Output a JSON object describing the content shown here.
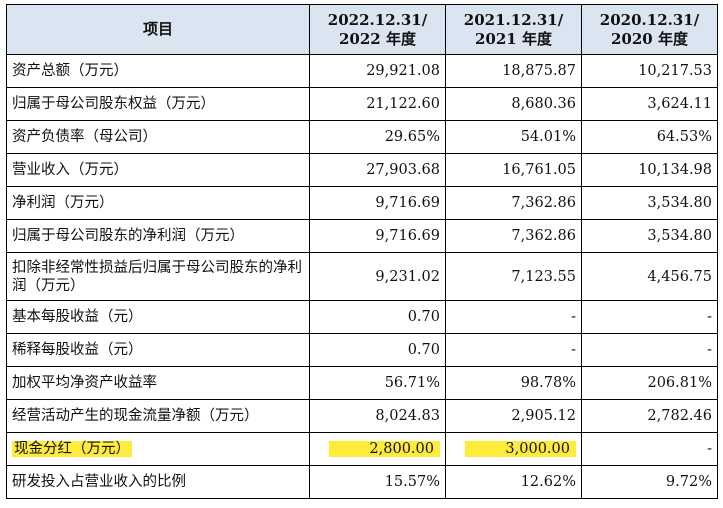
{
  "table": {
    "headers": [
      {
        "line1": "项目",
        "line2": ""
      },
      {
        "line1": "2022.12.31/",
        "line2": "2022 年度"
      },
      {
        "line1": "2021.12.31/",
        "line2": "2021 年度"
      },
      {
        "line1": "2020.12.31/",
        "line2": "2020 年度"
      }
    ],
    "rows": [
      {
        "label": "资产总额（万元）",
        "values": [
          "29,921.08",
          "18,875.87",
          "10,217.53"
        ]
      },
      {
        "label": "归属于母公司股东权益（万元）",
        "values": [
          "21,122.60",
          "8,680.36",
          "3,624.11"
        ]
      },
      {
        "label": "资产负债率（母公司）",
        "values": [
          "29.65%",
          "54.01%",
          "64.53%"
        ]
      },
      {
        "label": "营业收入（万元）",
        "values": [
          "27,903.68",
          "16,761.05",
          "10,134.98"
        ]
      },
      {
        "label": "净利润（万元）",
        "values": [
          "9,716.69",
          "7,362.86",
          "3,534.80"
        ]
      },
      {
        "label": "归属于母公司股东的净利润（万元）",
        "values": [
          "9,716.69",
          "7,362.86",
          "3,534.80"
        ]
      },
      {
        "label": "扣除非经常性损益后归属于母公司股东的净利润（万元）",
        "values": [
          "9,231.02",
          "7,123.55",
          "4,456.75"
        ]
      },
      {
        "label": "基本每股收益（元）",
        "values": [
          "0.70",
          "-",
          "-"
        ]
      },
      {
        "label": "稀释每股收益（元）",
        "values": [
          "0.70",
          "-",
          "-"
        ]
      },
      {
        "label": "加权平均净资产收益率",
        "values": [
          "56.71%",
          "98.78%",
          "206.81%"
        ]
      },
      {
        "label": "经营活动产生的现金流量净额（万元）",
        "values": [
          "8,024.83",
          "2,905.12",
          "2,782.46"
        ]
      },
      {
        "label": "现金分红（万元）",
        "values": [
          "2,800.00",
          "3,000.00",
          "-"
        ]
      },
      {
        "label": "研发投入占营业收入的比例",
        "values": [
          "15.57%",
          "12.62%",
          "9.72%"
        ]
      }
    ]
  },
  "colors": {
    "header_bg": "#dbe5f1",
    "highlight": "#ffeb3b"
  }
}
